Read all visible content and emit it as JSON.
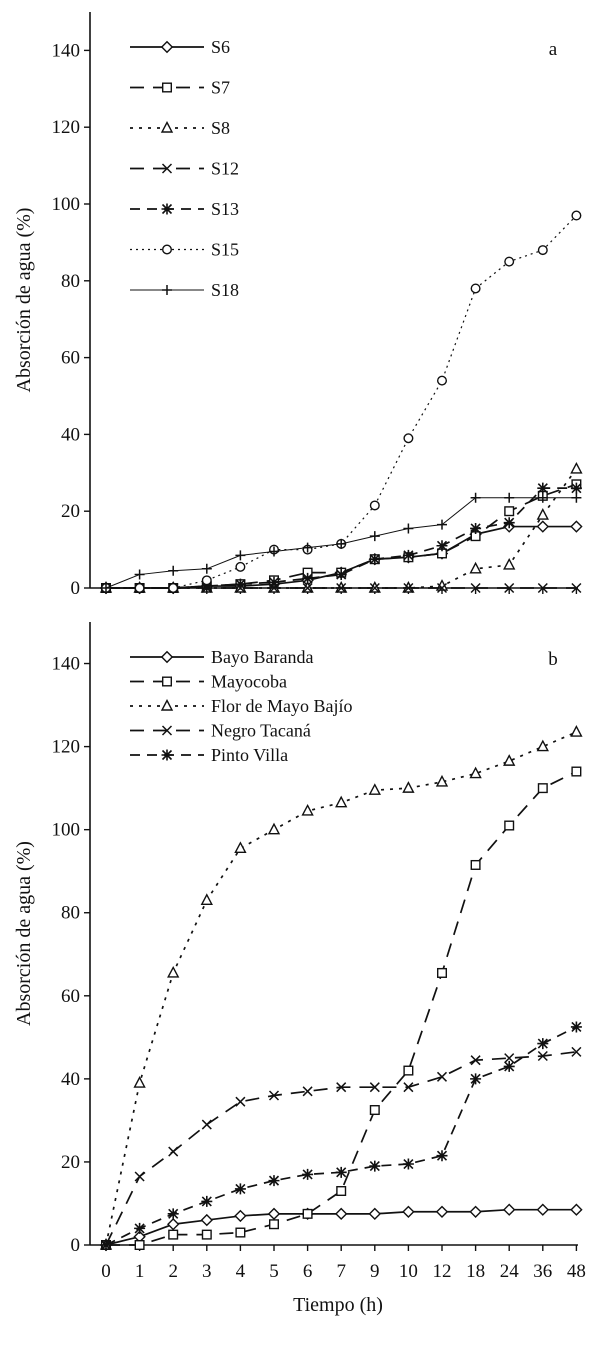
{
  "chart_data": [
    {
      "type": "line",
      "panel_label": "a",
      "ylabel": "Absorción de agua (%)",
      "xlabel": "",
      "categories": [
        "0",
        "1",
        "2",
        "3",
        "4",
        "5",
        "6",
        "7",
        "9",
        "10",
        "12",
        "18",
        "24",
        "36",
        "48"
      ],
      "ylim": [
        0,
        150
      ],
      "yticks": [
        "0",
        "20",
        "40",
        "60",
        "80",
        "100",
        "120",
        "140"
      ],
      "grid": false,
      "legend_position": "top-left",
      "series": [
        {
          "name": "S6",
          "line_style": "solid",
          "marker": "diamond",
          "values": [
            0,
            0,
            0,
            0.5,
            0.5,
            1,
            2,
            4,
            7.5,
            8,
            9,
            14,
            16,
            16,
            16
          ]
        },
        {
          "name": "S7",
          "line_style": "long-dash",
          "marker": "square",
          "values": [
            0,
            0,
            0,
            0.5,
            1,
            2,
            4,
            4,
            7.5,
            8,
            9,
            13.5,
            20,
            24,
            27
          ]
        },
        {
          "name": "S8",
          "line_style": "dotted",
          "marker": "triangle",
          "values": [
            0,
            0,
            0,
            0,
            0,
            0,
            0,
            0,
            0,
            0,
            0.5,
            5,
            6,
            19,
            31
          ]
        },
        {
          "name": "S12",
          "line_style": "long-dash",
          "marker": "x",
          "values": [
            0,
            0,
            0,
            0,
            0,
            0,
            0,
            0,
            0,
            0,
            0,
            0,
            0,
            0,
            0
          ]
        },
        {
          "name": "S13",
          "line_style": "dash",
          "marker": "star",
          "values": [
            0,
            0,
            0,
            0.5,
            1,
            1.5,
            2.5,
            3.5,
            7.5,
            8.5,
            11,
            15.5,
            17,
            26,
            26
          ]
        },
        {
          "name": "S15",
          "line_style": "dotted-thin",
          "marker": "circle",
          "values": [
            0,
            0,
            0,
            2,
            5.5,
            10,
            10,
            11.5,
            21.5,
            39,
            54,
            78,
            85,
            88,
            97
          ]
        },
        {
          "name": "S18",
          "line_style": "solid-thin",
          "marker": "plus",
          "values": [
            0,
            3.5,
            4.5,
            5,
            8.5,
            9.5,
            10.5,
            11.5,
            13.5,
            15.5,
            16.5,
            23.5,
            23.5,
            23.5,
            23.5
          ]
        }
      ]
    },
    {
      "type": "line",
      "panel_label": "b",
      "ylabel": "Absorción de agua (%)",
      "xlabel": "Tiempo (h)",
      "categories": [
        "0",
        "1",
        "2",
        "3",
        "4",
        "5",
        "6",
        "7",
        "9",
        "10",
        "12",
        "18",
        "24",
        "36",
        "48"
      ],
      "ylim": [
        0,
        150
      ],
      "yticks": [
        "0",
        "20",
        "40",
        "60",
        "80",
        "100",
        "120",
        "140"
      ],
      "grid": false,
      "legend_position": "top-left",
      "series": [
        {
          "name": "Bayo Baranda",
          "line_style": "solid",
          "marker": "diamond",
          "values": [
            0,
            2,
            5,
            6,
            7,
            7.5,
            7.5,
            7.5,
            7.5,
            8,
            8,
            8,
            8.5,
            8.5,
            8.5
          ]
        },
        {
          "name": "Mayocoba",
          "line_style": "long-dash",
          "marker": "square",
          "values": [
            0,
            0,
            2.5,
            2.5,
            3,
            5,
            7.5,
            13,
            32.5,
            42,
            65.5,
            91.5,
            101,
            110,
            114
          ]
        },
        {
          "name": "Flor de Mayo Bajío",
          "line_style": "dotted",
          "marker": "triangle",
          "values": [
            0,
            39,
            65.5,
            83,
            95.5,
            100,
            104.5,
            106.5,
            109.5,
            110,
            111.5,
            113.5,
            116.5,
            120,
            123.5
          ]
        },
        {
          "name": "Negro Tacaná",
          "line_style": "long-dash",
          "marker": "x",
          "values": [
            0,
            16.5,
            22.5,
            29,
            34.5,
            36,
            37,
            38,
            38,
            38,
            40.5,
            44.5,
            45,
            45.5,
            46.5
          ]
        },
        {
          "name": "Pinto Villa",
          "line_style": "dash",
          "marker": "star",
          "values": [
            0,
            4,
            7.5,
            10.5,
            13.5,
            15.5,
            17,
            17.5,
            19,
            19.5,
            21.5,
            40,
            43,
            48.5,
            52.5
          ]
        }
      ]
    }
  ]
}
